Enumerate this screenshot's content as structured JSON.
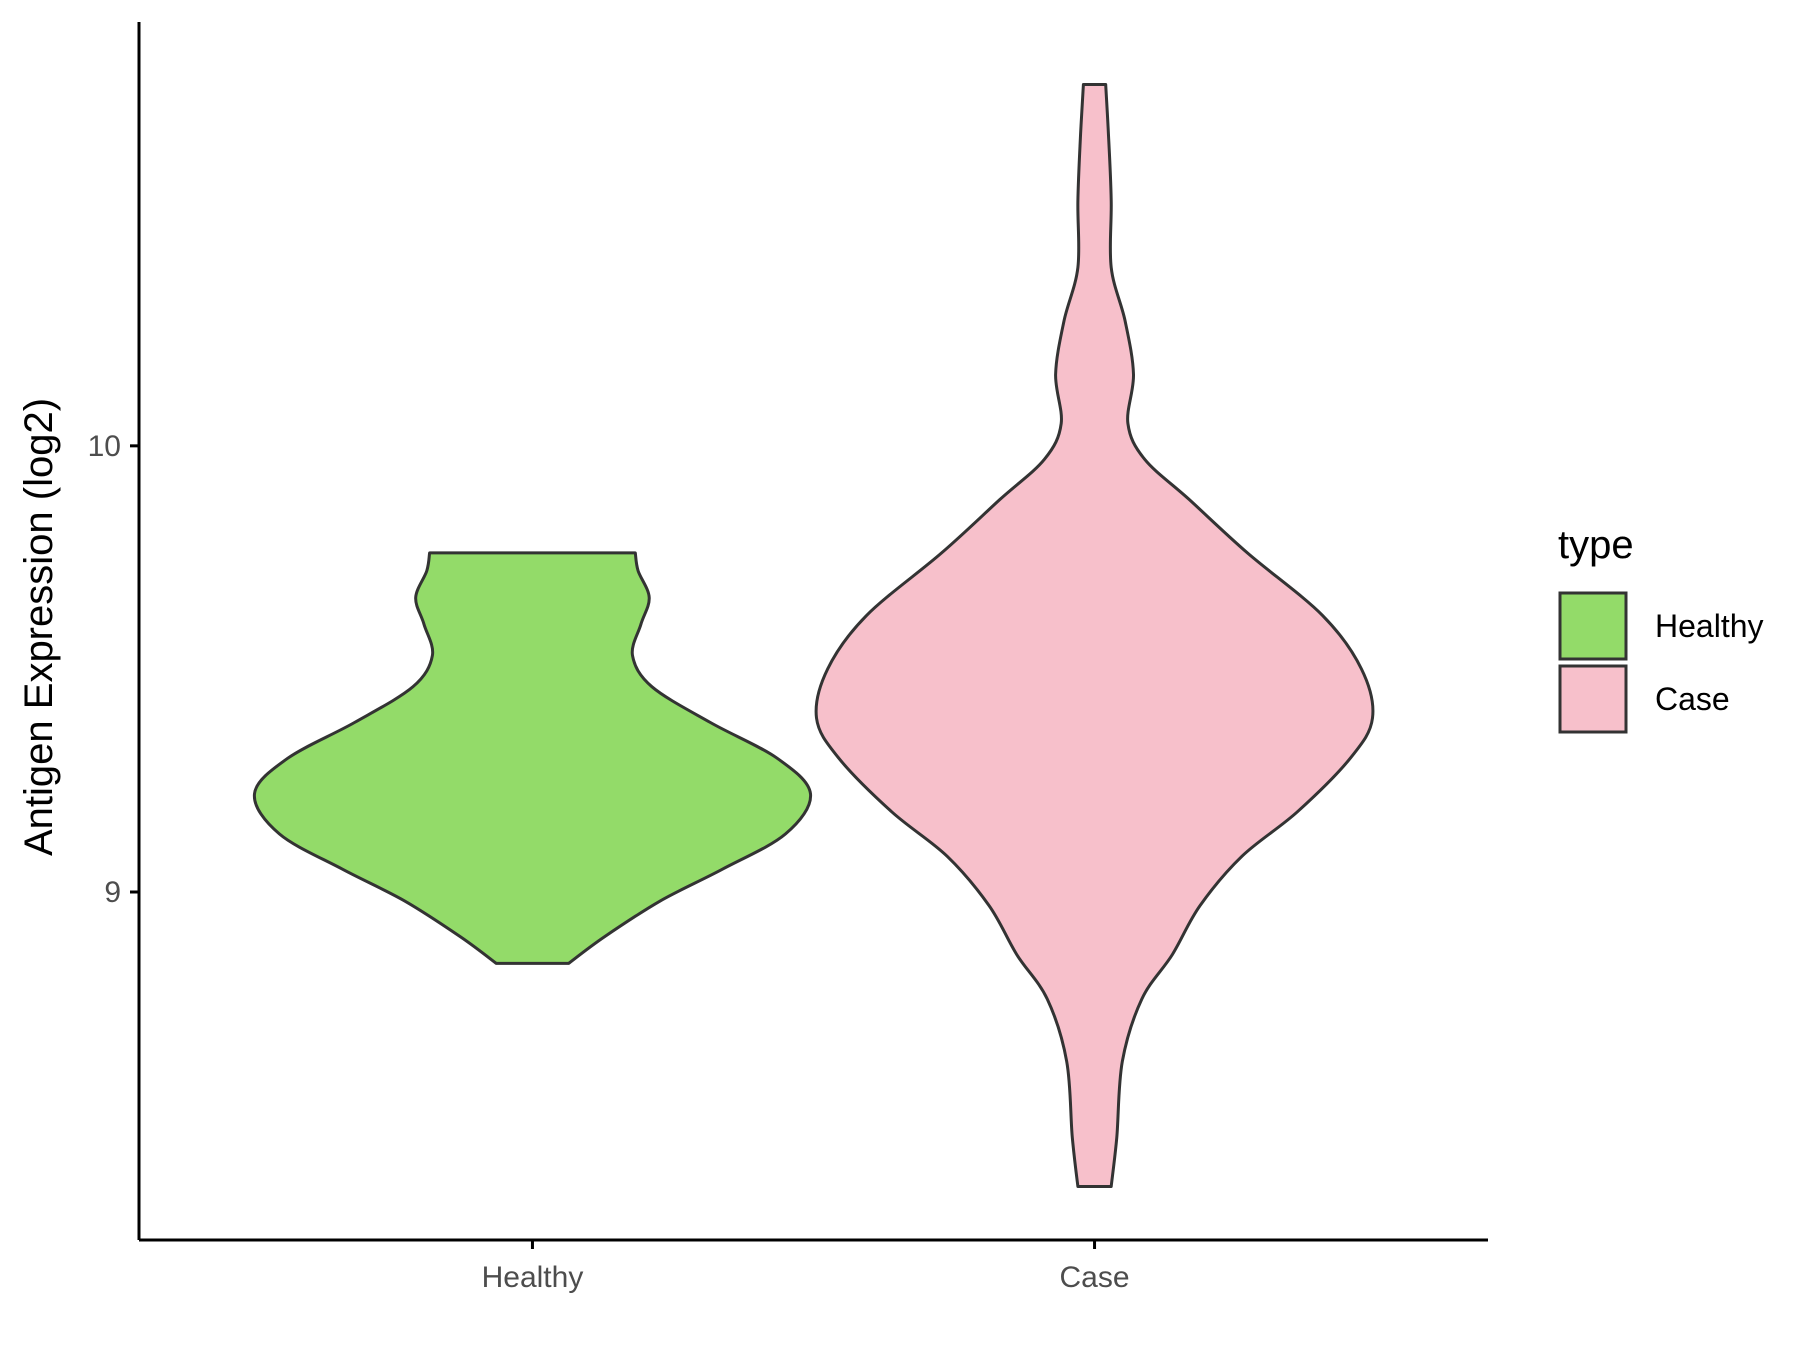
{
  "chart_data": {
    "type": "violin",
    "title": "",
    "xlabel": "",
    "ylabel": "Antigen Expression (log2)",
    "categories": [
      "Healthy",
      "Case"
    ],
    "y_ticks": [
      9,
      10
    ],
    "ylim": [
      8.22,
      10.95
    ],
    "grid": false,
    "legend": {
      "title": "type",
      "position": "right",
      "entries": [
        "Healthy",
        "Case"
      ]
    },
    "colors": {
      "Healthy": "#93DB69",
      "Case": "#F7C0CB",
      "outline": "#333333"
    },
    "series": [
      {
        "name": "Healthy",
        "min": 8.84,
        "max": 9.76,
        "density_profile": [
          [
            8.84,
            0.13
          ],
          [
            8.9,
            0.26
          ],
          [
            8.98,
            0.46
          ],
          [
            9.05,
            0.68
          ],
          [
            9.13,
            0.91
          ],
          [
            9.22,
            1.0
          ],
          [
            9.3,
            0.88
          ],
          [
            9.38,
            0.64
          ],
          [
            9.46,
            0.43
          ],
          [
            9.53,
            0.36
          ],
          [
            9.6,
            0.39
          ],
          [
            9.66,
            0.42
          ],
          [
            9.72,
            0.38
          ],
          [
            9.76,
            0.37
          ]
        ]
      },
      {
        "name": "Case",
        "min": 8.34,
        "max": 10.81,
        "density_profile": [
          [
            8.34,
            0.06
          ],
          [
            8.45,
            0.08
          ],
          [
            8.62,
            0.1
          ],
          [
            8.76,
            0.17
          ],
          [
            8.86,
            0.28
          ],
          [
            8.97,
            0.38
          ],
          [
            9.08,
            0.53
          ],
          [
            9.18,
            0.73
          ],
          [
            9.3,
            0.92
          ],
          [
            9.39,
            1.0
          ],
          [
            9.5,
            0.96
          ],
          [
            9.62,
            0.82
          ],
          [
            9.76,
            0.55
          ],
          [
            9.88,
            0.34
          ],
          [
            9.97,
            0.18
          ],
          [
            10.05,
            0.12
          ],
          [
            10.16,
            0.14
          ],
          [
            10.28,
            0.11
          ],
          [
            10.4,
            0.06
          ],
          [
            10.55,
            0.06
          ],
          [
            10.7,
            0.05
          ],
          [
            10.81,
            0.04
          ]
        ]
      }
    ]
  }
}
